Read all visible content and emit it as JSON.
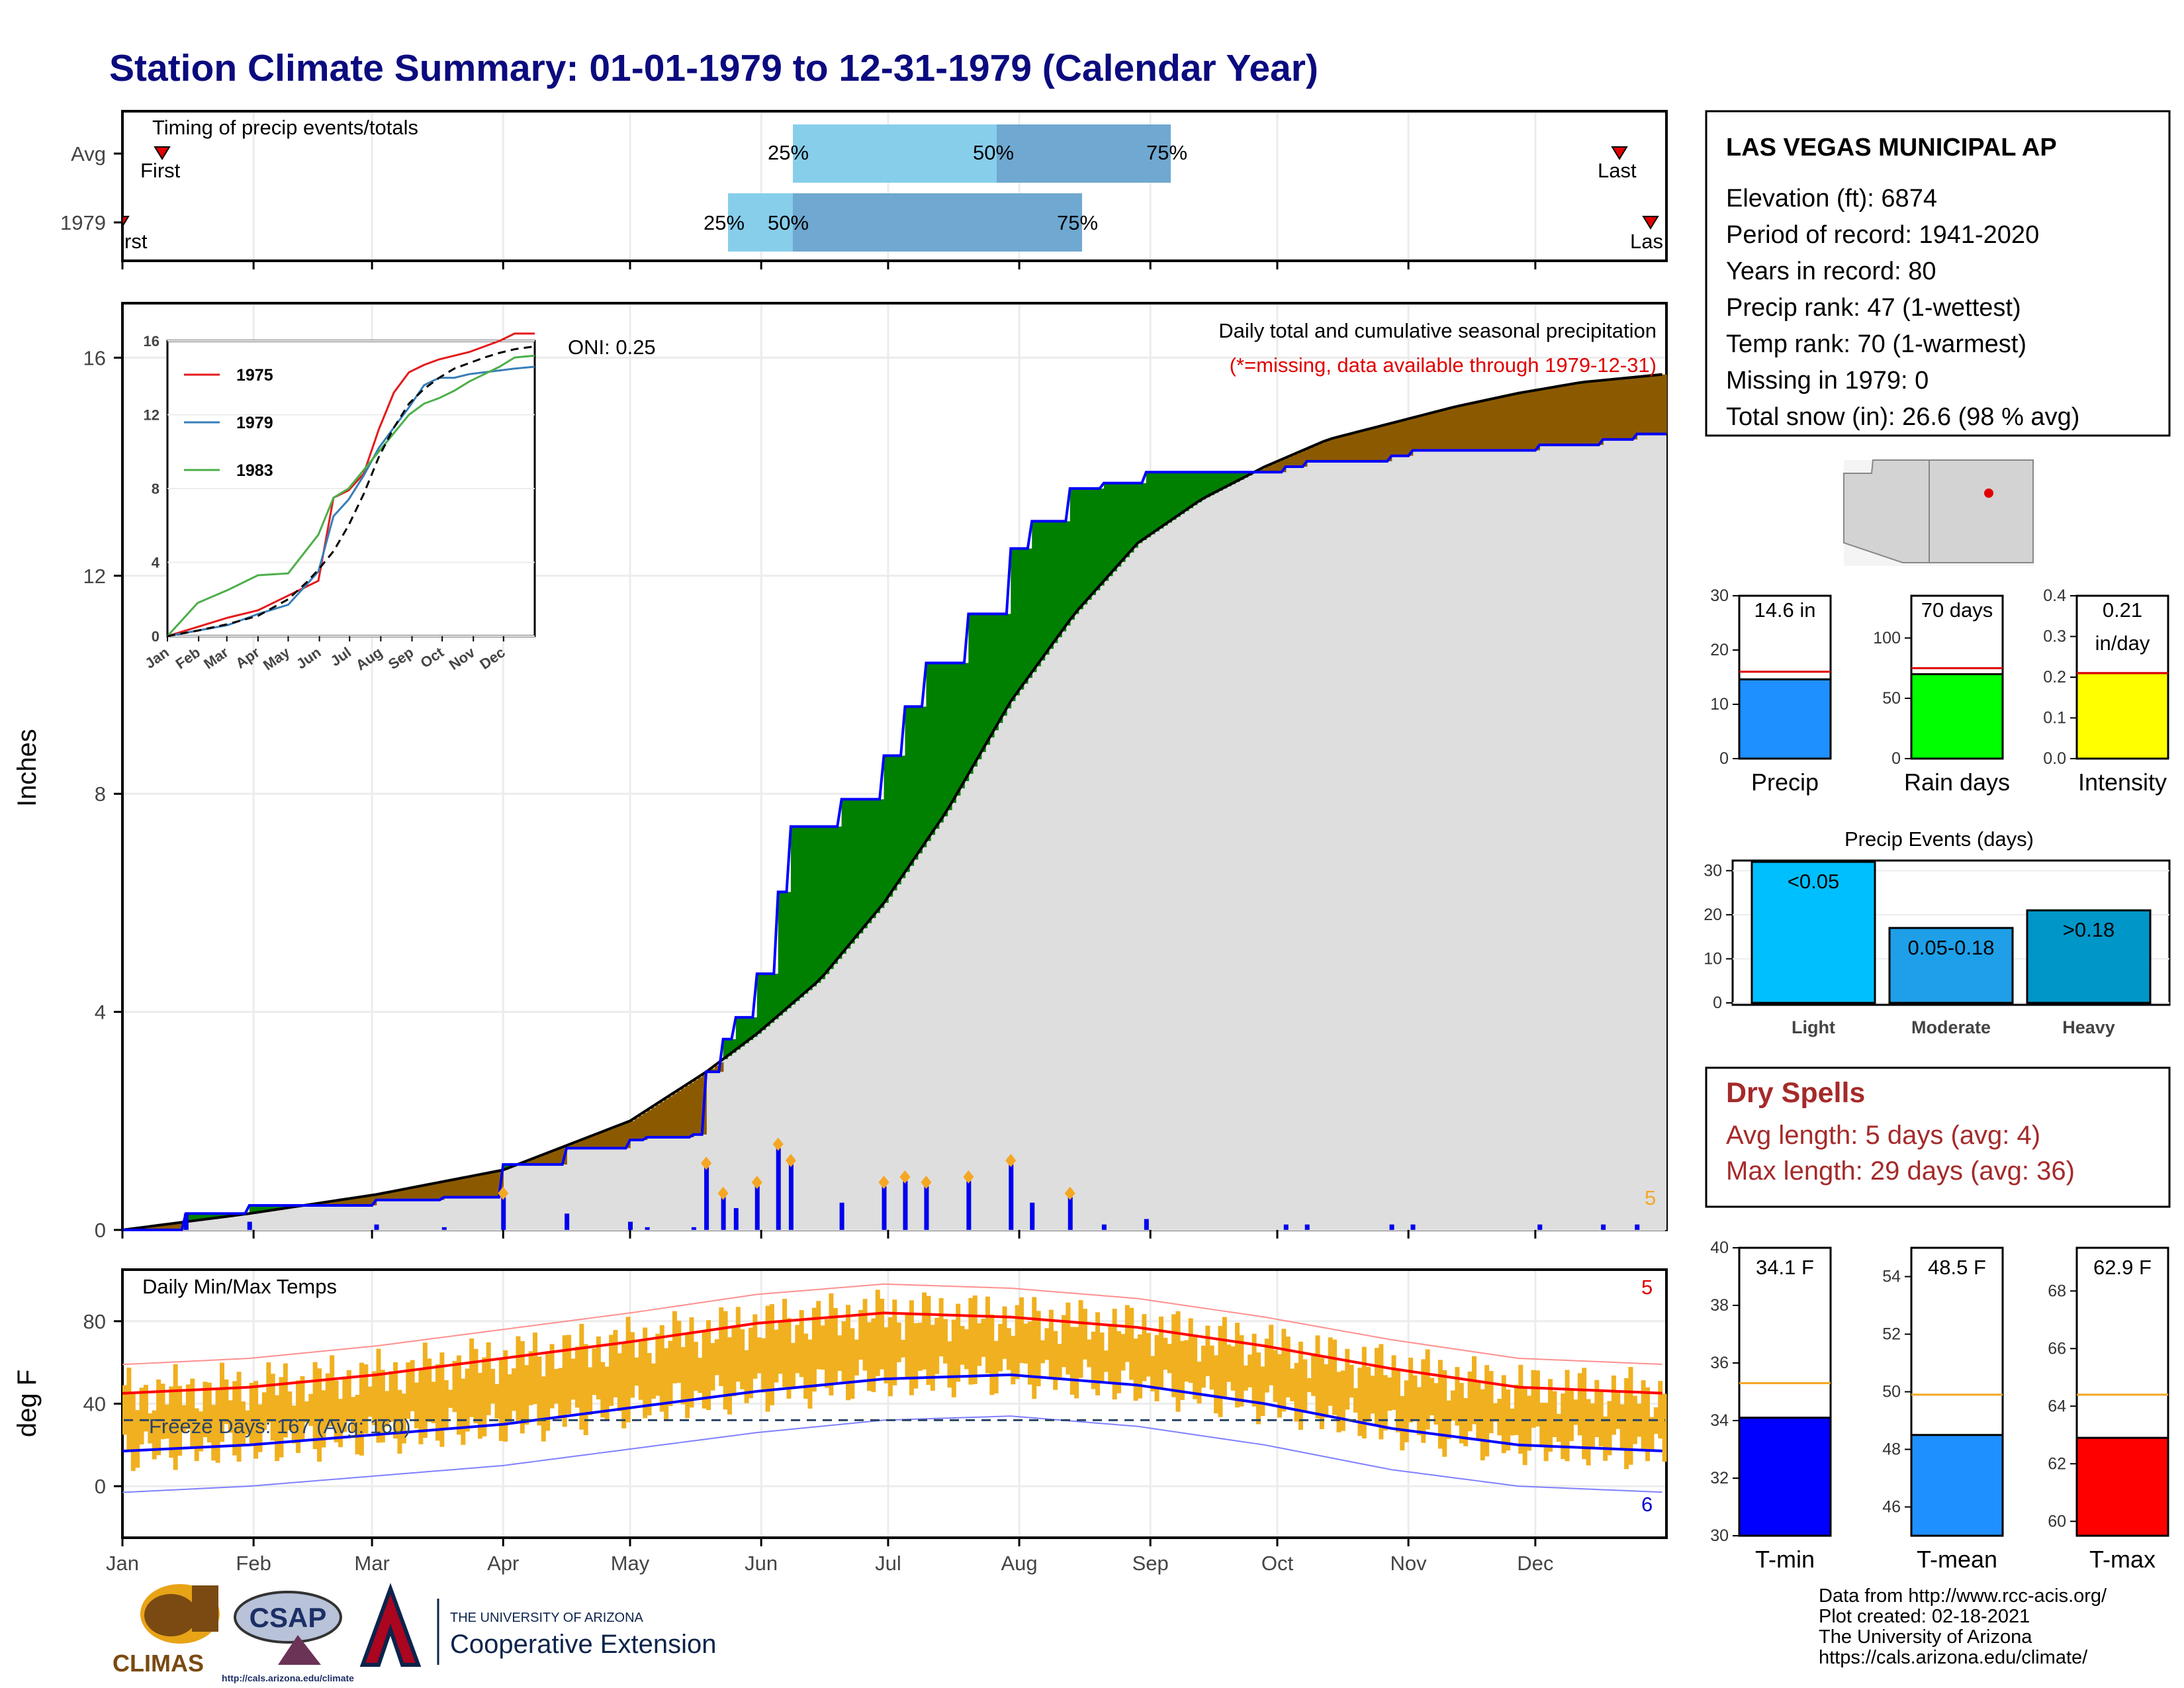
{
  "title": "Station Climate Summary: 01-01-1979 to 12-31-1979 (Calendar Year)",
  "colors": {
    "precip_obs_line": "#0000ff",
    "cum_above": "#008000",
    "cum_below": "#8b5a00",
    "grey_fill": "#dedede",
    "tmax": "#ff0000",
    "tmin": "#0000ff",
    "temp_bars": "#f0b020",
    "normal_line": "#f5a623"
  },
  "station": {
    "name": "LAS VEGAS MUNICIPAL AP",
    "lines": [
      "Elevation (ft): 6874",
      "Period of record: 1941-2020",
      "Years in record: 80",
      "Precip rank: 47 (1-wettest)",
      "Temp rank: 70 (1-warmest)",
      "Missing in 1979: 0",
      "Total snow (in): 26.6 (98 % avg)"
    ]
  },
  "timing": {
    "label": "Timing of precip events/totals",
    "rows": [
      "Avg",
      "1979"
    ],
    "first_label": "First",
    "last_label": "Last",
    "first_label_cut": "rst",
    "last_label_cut": "Las",
    "pct_labels": [
      "25%",
      "50%",
      "75%"
    ]
  },
  "precip_panel": {
    "ylabel": "Inches",
    "yticks": [
      "0",
      "4",
      "8",
      "12",
      "16"
    ],
    "oni": "ONI: 0.25",
    "desc": "Daily total and cumulative seasonal precipitation",
    "missing": "(*=missing, data available through 1979-12-31)",
    "count_label": "5"
  },
  "inset": {
    "yticks": [
      "0",
      "4",
      "8",
      "12",
      "16"
    ],
    "months": [
      "Jan",
      "Feb",
      "Mar",
      "Apr",
      "May",
      "Jun",
      "Jul",
      "Aug",
      "Sep",
      "Oct",
      "Nov",
      "Dec"
    ],
    "legend": [
      "1975",
      "1979",
      "1983"
    ]
  },
  "temp_panel": {
    "ylabel": "deg F",
    "label": "Daily Min/Max Temps",
    "freeze": "Freeze Days: 167 (Avg: 160)",
    "yticks": [
      "0",
      "40",
      "80"
    ],
    "count_max": "5",
    "count_min": "6"
  },
  "months": [
    "Jan",
    "Feb",
    "Mar",
    "Apr",
    "May",
    "Jun",
    "Jul",
    "Aug",
    "Sep",
    "Oct",
    "Nov",
    "Dec"
  ],
  "small_bars": [
    {
      "label": "Precip",
      "value_label": "14.6 in",
      "yticks": [
        "0",
        "10",
        "20",
        "30"
      ]
    },
    {
      "label": "Rain days",
      "value_label": "70 days",
      "yticks": [
        "0",
        "50",
        "100"
      ]
    },
    {
      "label": "Intensity",
      "value_label": "0.21",
      "value_label2": "in/day",
      "yticks": [
        "0.0",
        "0.1",
        "0.2",
        "0.3",
        "0.4"
      ]
    }
  ],
  "events": {
    "title": "Precip Events (days)",
    "yticks": [
      "0",
      "10",
      "20",
      "30"
    ],
    "bars": [
      {
        "name": "Light",
        "label": "<0.05",
        "value": 32
      },
      {
        "name": "Moderate",
        "label": "0.05-0.18",
        "value": 17
      },
      {
        "name": "Heavy",
        "label": ">0.18",
        "value": 21
      }
    ]
  },
  "dry": {
    "title": "Dry Spells",
    "avg": "Avg length: 5 days (avg: 4)",
    "max": "Max length: 29 days (avg: 36)"
  },
  "temp_bars": [
    {
      "label": "T-min",
      "value_label": "34.1 F",
      "yticks": [
        "30",
        "32",
        "34",
        "36",
        "38",
        "40"
      ]
    },
    {
      "label": "T-mean",
      "value_label": "48.5 F",
      "yticks": [
        "46",
        "48",
        "50",
        "52",
        "54"
      ]
    },
    {
      "label": "T-max",
      "value_label": "62.9 F",
      "yticks": [
        "60",
        "62",
        "64",
        "66",
        "68"
      ]
    }
  ],
  "footer": {
    "lines": [
      "Data from http://www.rcc-acis.org/",
      "Plot created: 02-18-2021",
      "The University of Arizona",
      "https://cals.arizona.edu/climate/"
    ],
    "climas": "CLIMAS",
    "csap": "CSAP",
    "csap_url": "http://cals.arizona.edu/climate",
    "ua_small": "THE UNIVERSITY OF ARIZONA",
    "ua_big": "Cooperative Extension"
  },
  "chart_data": [
    {
      "type": "area",
      "name": "Daily total and cumulative seasonal precipitation",
      "ylabel": "Inches",
      "ylim": [
        0,
        17
      ],
      "x_unit": "day of year",
      "series": [
        {
          "name": "observed cumulative",
          "x": [
            0,
            15,
            30,
            60,
            76,
            90,
            105,
            120,
            124,
            135,
            138,
            142,
            145,
            150,
            155,
            158,
            170,
            180,
            185,
            190,
            200,
            210,
            215,
            224,
            230,
            232,
            242,
            260,
            275,
            280,
            288,
            300,
            305,
            320,
            335,
            350,
            358,
            365
          ],
          "values": [
            0.0,
            0.3,
            0.45,
            0.55,
            0.6,
            1.2,
            1.5,
            1.65,
            1.7,
            1.75,
            2.9,
            3.5,
            3.9,
            4.7,
            6.2,
            7.4,
            7.9,
            8.7,
            9.6,
            10.4,
            11.3,
            12.5,
            13.0,
            13.6,
            13.6,
            13.7,
            13.9,
            13.9,
            14.0,
            14.1,
            14.1,
            14.2,
            14.3,
            14.3,
            14.4,
            14.5,
            14.6,
            14.6
          ]
        },
        {
          "name": "average cumulative",
          "x": [
            0,
            30,
            60,
            90,
            120,
            138,
            150,
            165,
            180,
            195,
            210,
            225,
            240,
            255,
            270,
            285,
            300,
            315,
            330,
            345,
            365
          ],
          "values": [
            0.0,
            0.3,
            0.65,
            1.1,
            2.0,
            2.9,
            3.6,
            4.6,
            6.0,
            7.7,
            9.7,
            11.3,
            12.6,
            13.4,
            14.0,
            14.5,
            14.8,
            15.1,
            15.35,
            15.55,
            15.7
          ]
        }
      ]
    },
    {
      "type": "line",
      "name": "inset cumulative precip",
      "ylim": [
        0,
        16
      ],
      "series": [
        {
          "name": "1975",
          "x": [
            0,
            30,
            60,
            90,
            120,
            150,
            165,
            180,
            195,
            210,
            225,
            240,
            255,
            270,
            285,
            300,
            315,
            330,
            345,
            365
          ],
          "values": [
            0,
            0.5,
            1.0,
            1.4,
            2.2,
            3.0,
            7.5,
            7.9,
            8.8,
            11.2,
            13.2,
            14.3,
            14.7,
            15.0,
            15.2,
            15.4,
            15.7,
            16.0,
            16.4,
            16.4
          ]
        },
        {
          "name": "1979",
          "x": [
            0,
            30,
            60,
            90,
            120,
            150,
            165,
            180,
            195,
            210,
            225,
            240,
            255,
            270,
            285,
            300,
            315,
            330,
            345,
            365
          ],
          "values": [
            0,
            0.3,
            0.6,
            1.2,
            1.7,
            3.5,
            6.5,
            7.4,
            8.7,
            10.2,
            11.3,
            12.4,
            13.6,
            14.0,
            14.0,
            14.2,
            14.3,
            14.4,
            14.5,
            14.6
          ]
        },
        {
          "name": "1983",
          "x": [
            0,
            30,
            60,
            90,
            120,
            150,
            165,
            180,
            195,
            210,
            225,
            240,
            255,
            270,
            285,
            300,
            315,
            330,
            345,
            365
          ],
          "values": [
            0,
            1.8,
            2.5,
            3.3,
            3.4,
            5.5,
            7.5,
            8.0,
            9.0,
            10.0,
            11.0,
            12.0,
            12.6,
            12.9,
            13.3,
            13.8,
            14.2,
            14.6,
            15.1,
            15.2
          ]
        }
      ]
    },
    {
      "type": "line",
      "name": "Daily Min/Max Temps",
      "ylabel": "deg F",
      "ylim": [
        -25,
        105
      ],
      "series": [
        {
          "name": "normal max",
          "x": [
            0,
            30,
            60,
            90,
            120,
            150,
            180,
            210,
            240,
            270,
            300,
            330,
            365
          ],
          "values": [
            45,
            48,
            54,
            62,
            70,
            79,
            84,
            82,
            77,
            68,
            57,
            48,
            45
          ]
        },
        {
          "name": "normal min",
          "x": [
            0,
            30,
            60,
            90,
            120,
            150,
            180,
            210,
            240,
            270,
            300,
            330,
            365
          ],
          "values": [
            17,
            20,
            25,
            30,
            38,
            46,
            52,
            54,
            49,
            40,
            28,
            20,
            17
          ]
        }
      ]
    },
    {
      "type": "bar",
      "name": "Precip",
      "categories": [
        "1979"
      ],
      "values": [
        14.6
      ],
      "avg": 16,
      "ylim": [
        0,
        30
      ]
    },
    {
      "type": "bar",
      "name": "Rain days",
      "categories": [
        "1979"
      ],
      "values": [
        70
      ],
      "avg": 75,
      "ylim": [
        0,
        135
      ]
    },
    {
      "type": "bar",
      "name": "Intensity",
      "categories": [
        "1979"
      ],
      "values": [
        0.21
      ],
      "avg": 0.21,
      "ylim": [
        0,
        0.4
      ]
    },
    {
      "type": "bar",
      "name": "Precip Events (days)",
      "categories": [
        "Light",
        "Moderate",
        "Heavy"
      ],
      "values": [
        32,
        17,
        21
      ],
      "ylim": [
        0,
        32
      ]
    },
    {
      "type": "bar",
      "name": "T-min",
      "categories": [
        "1979"
      ],
      "values": [
        34.1
      ],
      "avg": 35.3,
      "ylim": [
        30,
        40
      ]
    },
    {
      "type": "bar",
      "name": "T-mean",
      "categories": [
        "1979"
      ],
      "values": [
        48.5
      ],
      "avg": 49.9,
      "ylim": [
        45,
        55
      ]
    },
    {
      "type": "bar",
      "name": "T-max",
      "categories": [
        "1979"
      ],
      "values": [
        62.9
      ],
      "avg": 64.4,
      "ylim": [
        59.5,
        69.5
      ]
    }
  ]
}
